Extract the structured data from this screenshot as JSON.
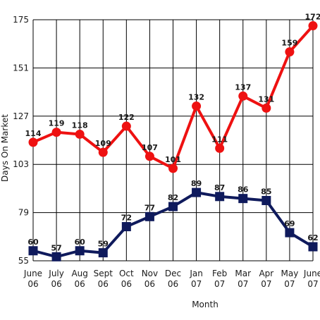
{
  "chart_data": {
    "type": "line",
    "categories": [
      [
        "June",
        "06"
      ],
      [
        "July",
        "06"
      ],
      [
        "Aug",
        "06"
      ],
      [
        "Sept",
        "06"
      ],
      [
        "Oct",
        "06"
      ],
      [
        "Nov",
        "06"
      ],
      [
        "Dec",
        "06"
      ],
      [
        "Jan",
        "07"
      ],
      [
        "Feb",
        "07"
      ],
      [
        "Mar",
        "07"
      ],
      [
        "Apr",
        "07"
      ],
      [
        "May",
        "07"
      ],
      [
        "June",
        "07"
      ]
    ],
    "series": [
      {
        "color": "#ee1111",
        "marker": "circle",
        "values": [
          114,
          119,
          118,
          109,
          122,
          107,
          101,
          132,
          111,
          137,
          131,
          159,
          172
        ]
      },
      {
        "color": "#0f1a5c",
        "marker": "square",
        "values": [
          60,
          57,
          60,
          59,
          72,
          77,
          82,
          89,
          87,
          86,
          85,
          69,
          62
        ]
      }
    ],
    "xlabel": "Month",
    "ylabel": "Days On Market",
    "ylim": [
      55,
      175
    ],
    "yticks": [
      55,
      79,
      103,
      127,
      151,
      175
    ],
    "grid": true,
    "legend": "none"
  }
}
